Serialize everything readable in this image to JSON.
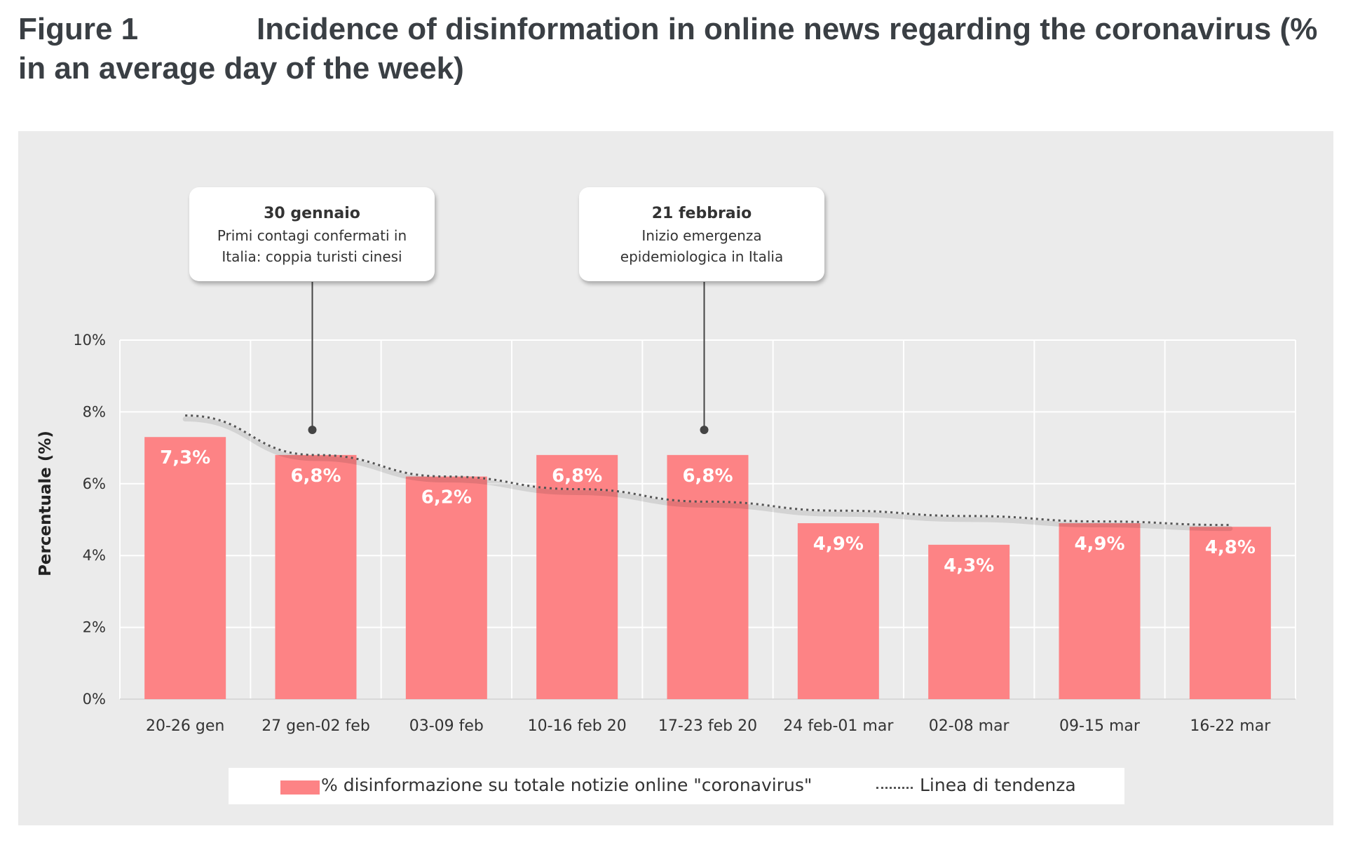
{
  "figure": {
    "number": "Figure 1",
    "title": "Incidence of disinformation in online news regarding the coronavirus (% in an average day of the week)"
  },
  "annotations": [
    {
      "head": "30 gennaio",
      "line1": "Primi contagi confermati in",
      "line2": "Italia: coppia turisti cinesi",
      "x_index": 1,
      "y_value": 7.5
    },
    {
      "head": "21 febbraio",
      "line1": "Inizio emergenza",
      "line2": "epidemiologica in Italia",
      "x_index": 4,
      "y_value": 7.5
    }
  ],
  "legend": {
    "bar_label": "% disinformazione su totale notizie online \"coronavirus\"",
    "trend_label": "Linea di tendenza"
  },
  "chart_data": {
    "type": "bar",
    "categories": [
      "20-26 gen",
      "27 gen-02 feb",
      "03-09 feb",
      "10-16 feb 20",
      "17-23 feb 20",
      "24 feb-01 mar",
      "02-08 mar",
      "09-15 mar",
      "16-22 mar"
    ],
    "series": [
      {
        "name": "% disinformazione su totale notizie online \"coronavirus\"",
        "values": [
          7.3,
          6.8,
          6.2,
          6.8,
          6.8,
          4.9,
          4.3,
          4.9,
          4.8
        ]
      }
    ],
    "data_labels": [
      "7,3%",
      "6,8%",
      "6,2%",
      "6,8%",
      "6,8%",
      "4,9%",
      "4,3%",
      "4,9%",
      "4,8%"
    ],
    "trendline": {
      "name": "Linea di tendenza",
      "style": "dotted",
      "values": [
        7.9,
        6.8,
        6.2,
        5.85,
        5.5,
        5.25,
        5.1,
        4.95,
        4.85
      ]
    },
    "ylabel": "Percentuale (%)",
    "xlabel": "",
    "ylim": [
      0,
      10
    ],
    "yticks": [
      0,
      2,
      4,
      6,
      8,
      10
    ],
    "ytick_labels": [
      "0%",
      "2%",
      "4%",
      "6%",
      "8%",
      "10%"
    ],
    "grid": true,
    "legend_position": "bottom",
    "colors": {
      "bar": "#fd8385",
      "trend": "#555555",
      "grid": "#ffffff",
      "background": "#ebebeb"
    }
  }
}
